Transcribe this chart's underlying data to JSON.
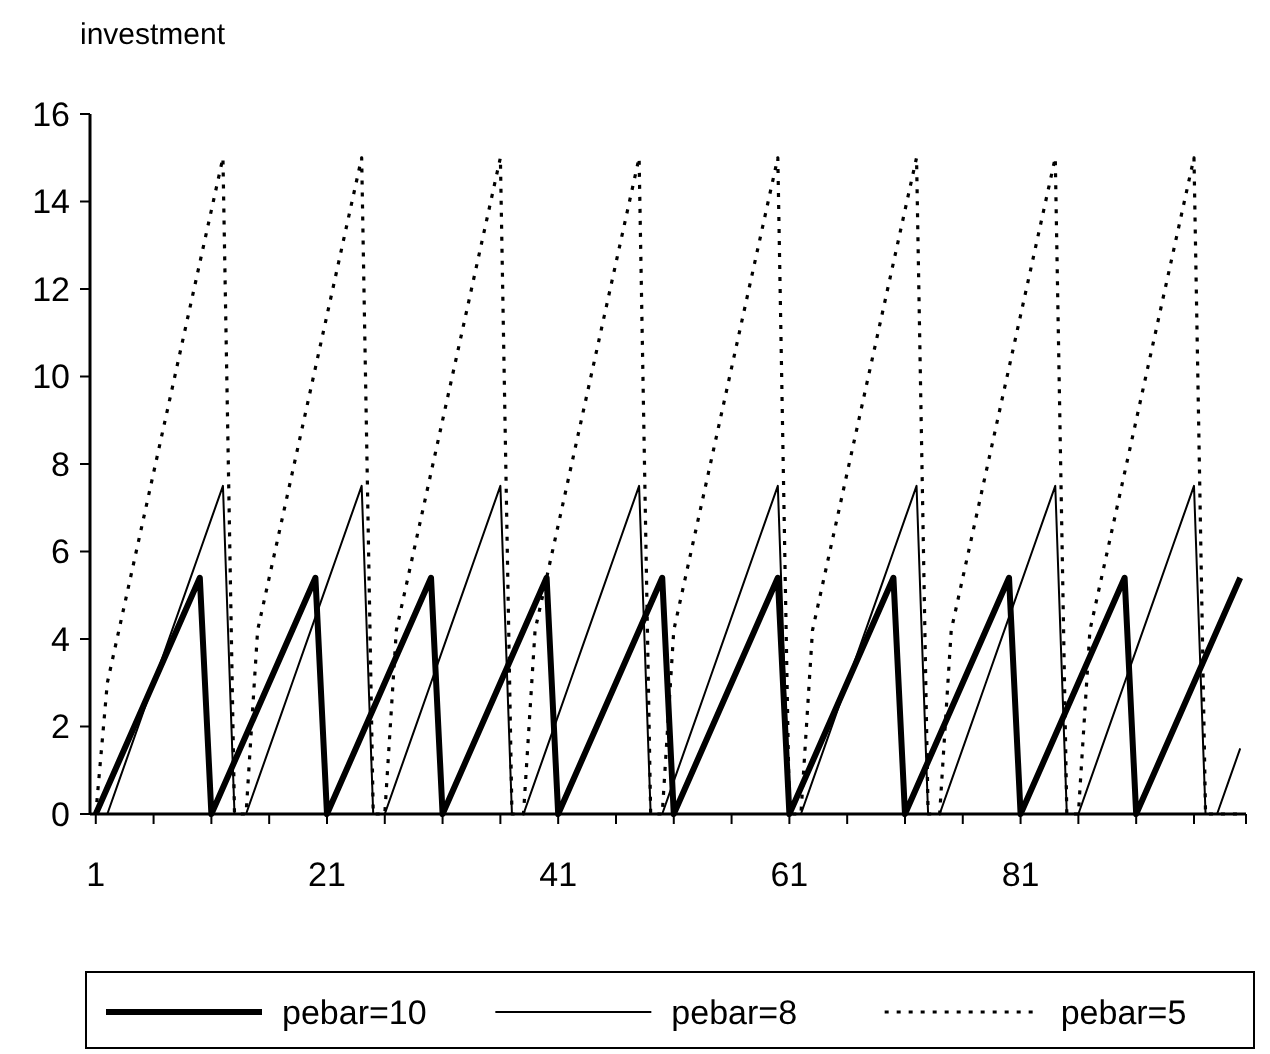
{
  "chart_data": {
    "type": "line",
    "ylabel": "investment",
    "categories": [
      "1",
      null,
      null,
      null,
      null,
      null,
      null,
      null,
      null,
      null,
      null,
      null,
      null,
      null,
      null,
      null,
      null,
      null,
      null,
      null,
      "21",
      null,
      null,
      null,
      null,
      null,
      null,
      null,
      null,
      null,
      null,
      null,
      null,
      null,
      null,
      null,
      null,
      null,
      null,
      null,
      "41",
      null,
      null,
      null,
      null,
      null,
      null,
      null,
      null,
      null,
      null,
      null,
      null,
      null,
      null,
      null,
      null,
      null,
      null,
      null,
      "61",
      null,
      null,
      null,
      null,
      null,
      null,
      null,
      null,
      null,
      null,
      null,
      null,
      null,
      null,
      null,
      null,
      null,
      null,
      null,
      "81",
      null,
      null,
      null,
      null,
      null,
      null,
      null,
      null,
      null,
      null,
      null,
      null,
      null,
      null,
      null,
      null,
      null,
      null,
      null
    ],
    "ylim": [
      0,
      16
    ],
    "yticks": [
      0,
      2,
      4,
      6,
      8,
      10,
      12,
      14,
      16
    ],
    "grid": false,
    "legend": "bottom",
    "series": [
      {
        "name": "pebar=10",
        "color": "#000000",
        "line_style": "solid",
        "values": [
          0,
          0.6,
          1.2,
          1.8,
          2.4,
          3,
          3.6,
          4.2,
          4.8,
          5.4,
          0,
          0.6,
          1.2,
          1.8,
          2.4,
          3,
          3.6,
          4.2,
          4.8,
          5.4,
          0,
          0.6,
          1.2,
          1.8,
          2.4,
          3,
          3.6,
          4.2,
          4.8,
          5.4,
          0,
          0.6,
          1.2,
          1.8,
          2.4,
          3,
          3.6,
          4.2,
          4.8,
          5.4,
          0,
          0.6,
          1.2,
          1.8,
          2.4,
          3,
          3.6,
          4.2,
          4.8,
          5.4,
          0,
          0.6,
          1.2,
          1.8,
          2.4,
          3,
          3.6,
          4.2,
          4.8,
          5.4,
          0,
          0.6,
          1.2,
          1.8,
          2.4,
          3,
          3.6,
          4.2,
          4.8,
          5.4,
          0,
          0.6,
          1.2,
          1.8,
          2.4,
          3,
          3.6,
          4.2,
          4.8,
          5.4,
          0,
          0.6,
          1.2,
          1.8,
          2.4,
          3,
          3.6,
          4.2,
          4.8,
          5.4,
          0,
          0.6,
          1.2,
          1.8,
          2.4,
          3,
          3.6,
          4.2,
          4.8,
          5.4
        ]
      },
      {
        "name": "pebar=8",
        "color": "#000000",
        "line_style": "solid",
        "values": [
          0,
          0,
          0.75,
          1.5,
          2.25,
          3,
          3.75,
          4.5,
          5.25,
          6,
          6.75,
          7.5,
          0,
          0,
          0.75,
          1.5,
          2.25,
          3,
          3.75,
          4.5,
          5.25,
          6,
          6.75,
          7.5,
          0,
          0,
          0.75,
          1.5,
          2.25,
          3,
          3.75,
          4.5,
          5.25,
          6,
          6.75,
          7.5,
          0,
          0,
          0.75,
          1.5,
          2.25,
          3,
          3.75,
          4.5,
          5.25,
          6,
          6.75,
          7.5,
          0,
          0,
          0.75,
          1.5,
          2.25,
          3,
          3.75,
          4.5,
          5.25,
          6,
          6.75,
          7.5,
          0,
          0,
          0.75,
          1.5,
          2.25,
          3,
          3.75,
          4.5,
          5.25,
          6,
          6.75,
          7.5,
          0,
          0,
          0.75,
          1.5,
          2.25,
          3,
          3.75,
          4.5,
          5.25,
          6,
          6.75,
          7.5,
          0,
          0,
          0.75,
          1.5,
          2.25,
          3,
          3.75,
          4.5,
          5.25,
          6,
          6.75,
          7.5,
          0,
          0,
          0.75,
          1.5
        ]
      },
      {
        "name": "pebar=5",
        "color": "#000000",
        "line_style": "dotted",
        "values": [
          0,
          3,
          4.2,
          5.4,
          6.6,
          7.8,
          9,
          10.2,
          11.4,
          12.6,
          13.8,
          15,
          0,
          0,
          4.2,
          5.4,
          6.6,
          7.8,
          9,
          10.2,
          11.4,
          12.6,
          13.8,
          15,
          0,
          0,
          4.2,
          5.4,
          6.6,
          7.8,
          9,
          10.2,
          11.4,
          12.6,
          13.8,
          15,
          0,
          0,
          4.2,
          5.4,
          6.6,
          7.8,
          9,
          10.2,
          11.4,
          12.6,
          13.8,
          15,
          0,
          0,
          4.2,
          5.4,
          6.6,
          7.8,
          9,
          10.2,
          11.4,
          12.6,
          13.8,
          15,
          0,
          0,
          4.2,
          5.4,
          6.6,
          7.8,
          9,
          10.2,
          11.4,
          12.6,
          13.8,
          15,
          0,
          0,
          4.2,
          5.4,
          6.6,
          7.8,
          9,
          10.2,
          11.4,
          12.6,
          13.8,
          15,
          0,
          0,
          4.2,
          5.4,
          6.6,
          7.8,
          9,
          10.2,
          11.4,
          12.6,
          13.8,
          15,
          0,
          0,
          0,
          0
        ]
      }
    ]
  }
}
